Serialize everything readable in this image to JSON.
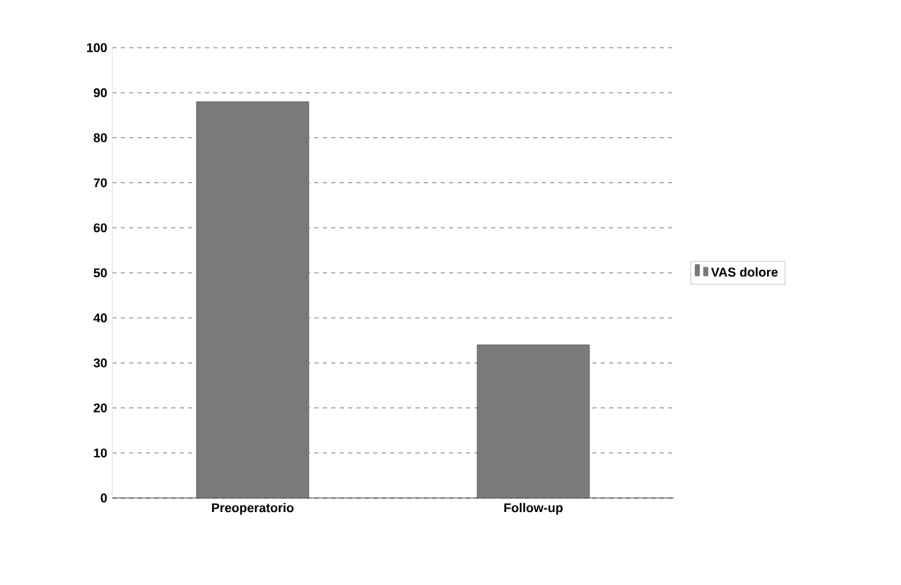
{
  "chart_data": {
    "type": "bar",
    "categories": [
      "Preoperatorio",
      "Follow-up"
    ],
    "series": [
      {
        "name": "VAS dolore",
        "color": "#7a7a7a",
        "values": [
          88,
          34
        ]
      }
    ],
    "ylim": [
      0,
      100
    ],
    "yticks": [
      0,
      10,
      20,
      30,
      40,
      50,
      60,
      70,
      80,
      90,
      100
    ],
    "grid": "y",
    "legend": "right"
  }
}
